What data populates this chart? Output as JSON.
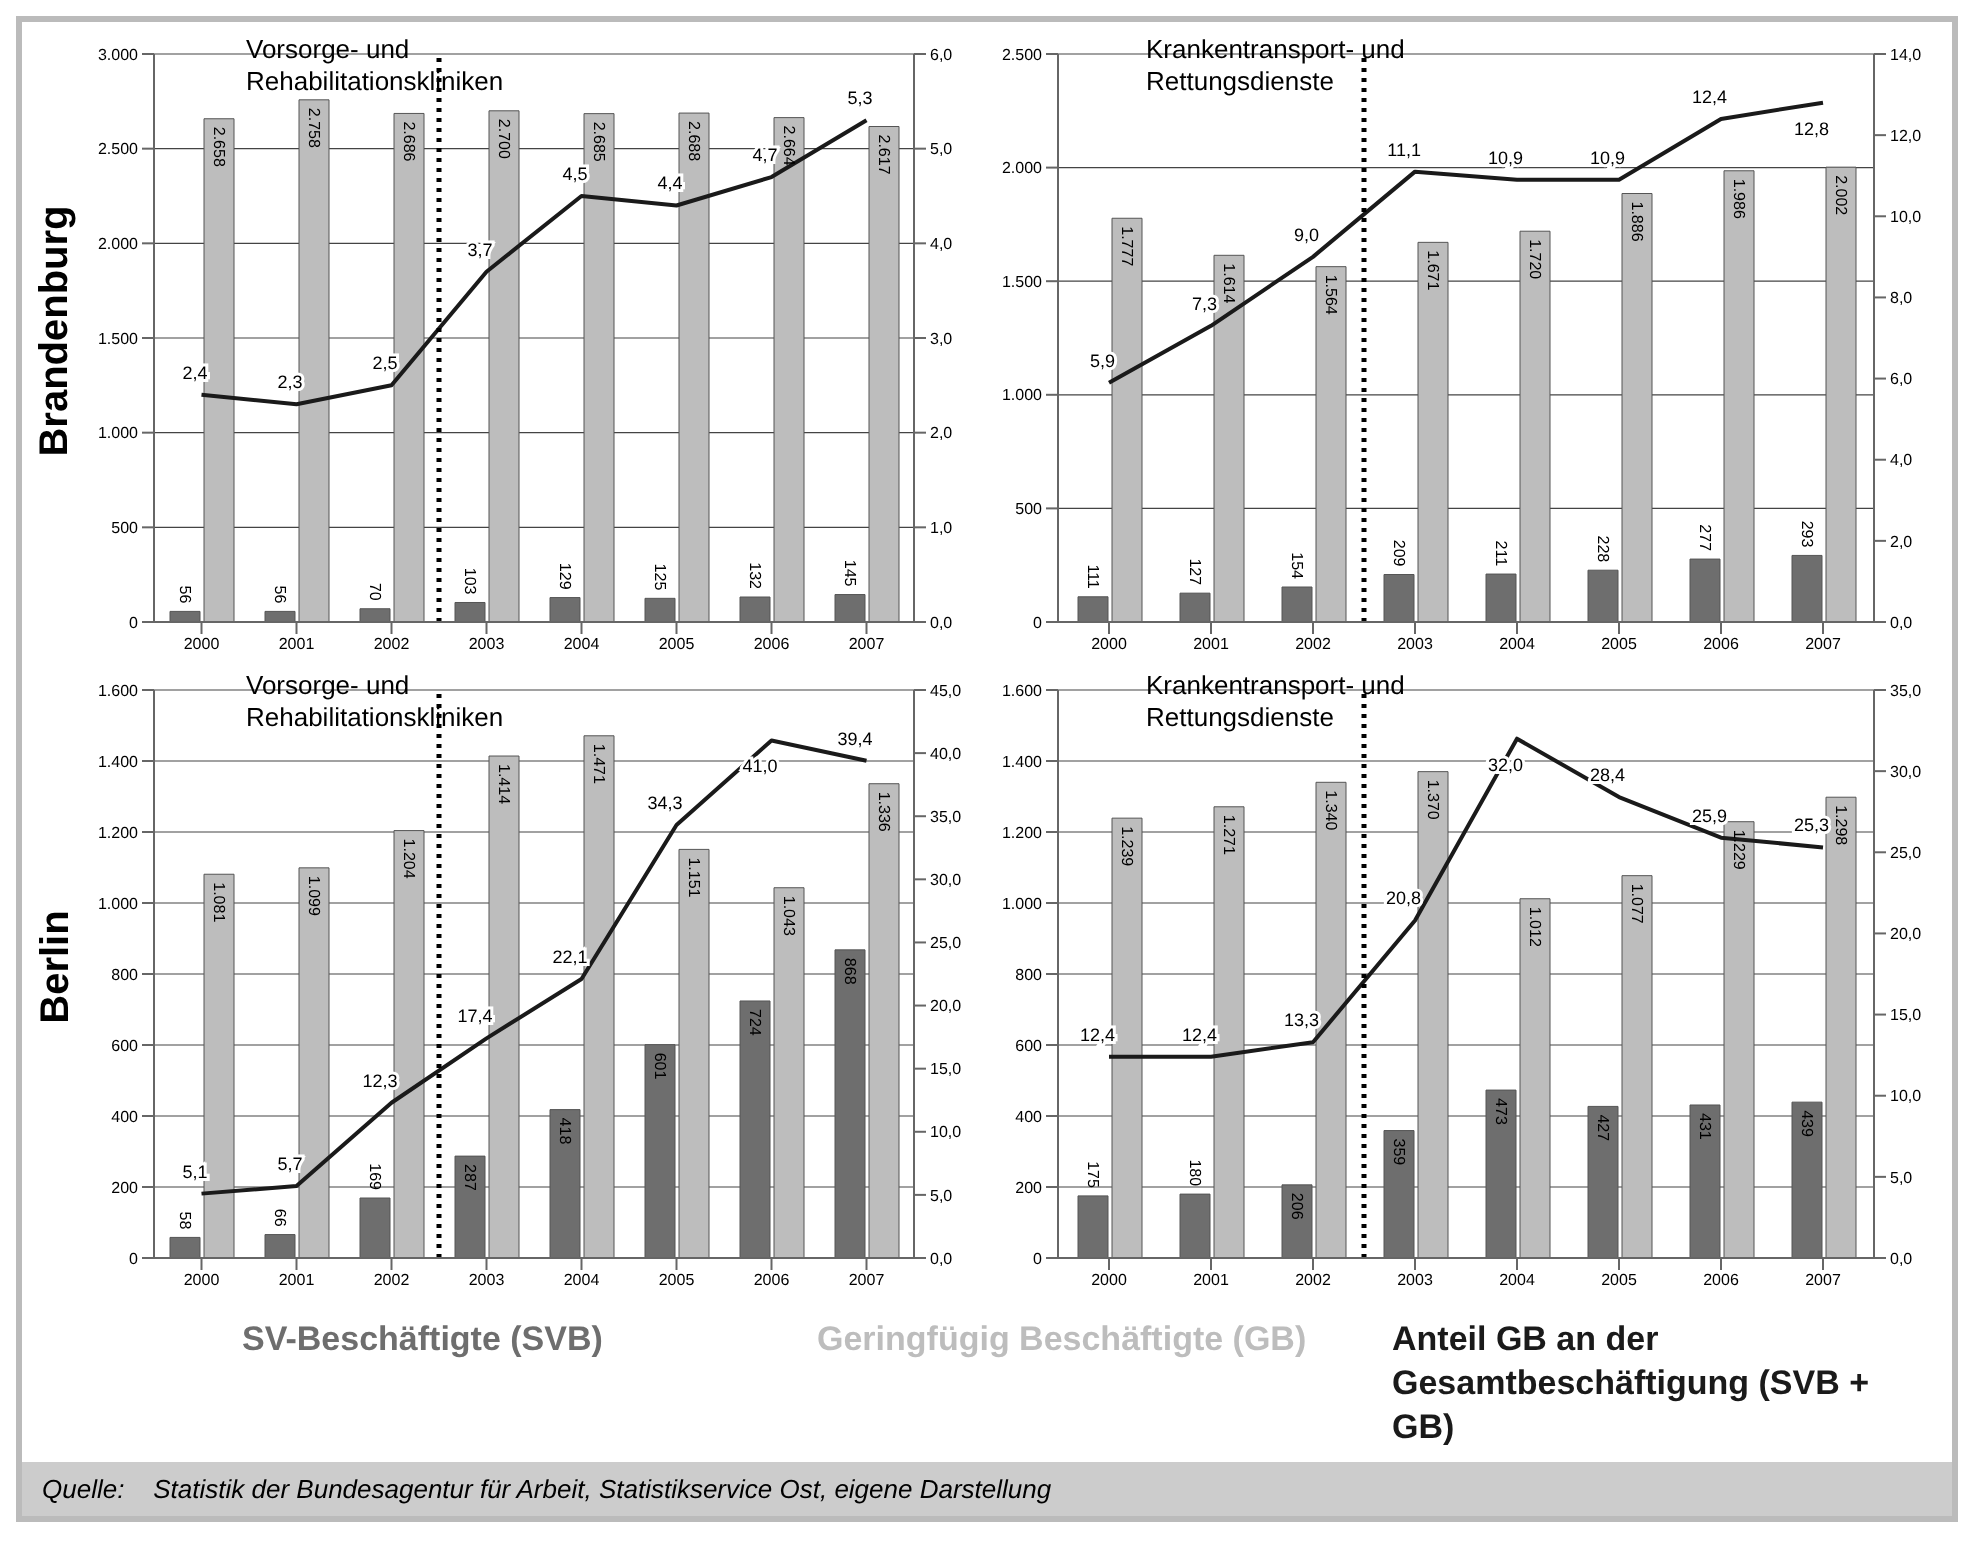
{
  "chart_data": [
    {
      "type": "bar",
      "title": "Vorsorge- und Rehabilitationskliniken",
      "ylabel": "Brandenburg",
      "x": [
        2000,
        2001,
        2002,
        2003,
        2004,
        2005,
        2006,
        2007
      ],
      "xlim": [
        1999.5,
        2007.5
      ],
      "xticks": [
        2000,
        2001,
        2002,
        2003,
        2004,
        2005,
        2006,
        2007
      ],
      "ylim": [
        0,
        3000
      ],
      "yticks": [
        0,
        500,
        {
          "value": 1000,
          "label": "1.000"
        },
        {
          "value": 1500,
          "label": "1.500"
        },
        {
          "value": 2000,
          "label": "2.000"
        },
        {
          "value": 2500,
          "label": "2.500"
        },
        {
          "value": 3000,
          "label": "3.000"
        }
      ],
      "y2lim": [
        0,
        6
      ],
      "y2ticks": [
        {
          "value": 0,
          "label": "0,0"
        },
        {
          "value": 1,
          "label": "1,0"
        },
        {
          "value": 2,
          "label": "2,0"
        },
        {
          "value": 3,
          "label": "3,0"
        },
        {
          "value": 4,
          "label": "4,0"
        },
        {
          "value": 5,
          "label": "5,0"
        },
        {
          "value": 6,
          "label": "6,0"
        }
      ],
      "grid": "y",
      "legend": "bottom",
      "marker": "none",
      "ref_lines": [
        {
          "axis": "x",
          "value": 2002.5,
          "color": "#000000",
          "line_style": "dotted"
        }
      ],
      "series": [
        {
          "name": "SV-Beschäftigte (SVB)",
          "type": "bar",
          "color": "#6e6e6e",
          "values": [
            56,
            56,
            70,
            103,
            129,
            125,
            132,
            145
          ],
          "value_labels": [
            "56",
            "56",
            "70",
            "103",
            "129",
            "125",
            "132",
            "145"
          ]
        },
        {
          "name": "Geringfügig Beschäftigte (GB)",
          "type": "bar",
          "color": "#bdbdbd",
          "values": [
            2658,
            2758,
            2686,
            2700,
            2685,
            2688,
            2664,
            2617
          ],
          "value_labels": [
            "2.658",
            "2.758",
            "2.686",
            "2.700",
            "2.685",
            "2.688",
            "2.664",
            "2.617"
          ]
        },
        {
          "name": "Anteil GB an der Gesamtbeschäftigung (SVB + GB)",
          "type": "line",
          "axis": "y2",
          "color": "#1a1a1a",
          "values": [
            2.4,
            2.3,
            2.5,
            3.7,
            4.5,
            4.4,
            4.7,
            5.3
          ],
          "value_labels": [
            "2,4",
            "2,3",
            "2,5",
            "3,7",
            "4,5",
            "4,4",
            "4,7",
            "5,3"
          ]
        }
      ]
    },
    {
      "type": "bar",
      "title": "Krankentransport- und Rettungsdienste",
      "x": [
        2000,
        2001,
        2002,
        2003,
        2004,
        2005,
        2006,
        2007
      ],
      "xlim": [
        1999.5,
        2007.5
      ],
      "xticks": [
        2000,
        2001,
        2002,
        2003,
        2004,
        2005,
        2006,
        2007
      ],
      "ylim": [
        0,
        2500
      ],
      "yticks": [
        0,
        500,
        {
          "value": 1000,
          "label": "1.000"
        },
        {
          "value": 1500,
          "label": "1.500"
        },
        {
          "value": 2000,
          "label": "2.000"
        },
        {
          "value": 2500,
          "label": "2.500"
        }
      ],
      "y2lim": [
        0,
        14
      ],
      "y2ticks": [
        {
          "value": 0,
          "label": "0,0"
        },
        {
          "value": 2,
          "label": "2,0"
        },
        {
          "value": 4,
          "label": "4,0"
        },
        {
          "value": 6,
          "label": "6,0"
        },
        {
          "value": 8,
          "label": "8,0"
        },
        {
          "value": 10,
          "label": "10,0"
        },
        {
          "value": 12,
          "label": "12,0"
        },
        {
          "value": 14,
          "label": "14,0"
        }
      ],
      "grid": "y",
      "marker": "none",
      "ref_lines": [
        {
          "axis": "x",
          "value": 2002.5,
          "color": "#000000",
          "line_style": "dotted"
        }
      ],
      "series": [
        {
          "type": "bar",
          "color": "#6e6e6e",
          "values": [
            111,
            127,
            154,
            209,
            211,
            228,
            277,
            293
          ],
          "value_labels": [
            "111",
            "127",
            "154",
            "209",
            "211",
            "228",
            "277",
            "293"
          ]
        },
        {
          "type": "bar",
          "color": "#bdbdbd",
          "values": [
            1777,
            1614,
            1564,
            1671,
            1720,
            1886,
            1986,
            2002
          ],
          "value_labels": [
            "1.777",
            "1.614",
            "1.564",
            "1.671",
            "1.720",
            "1.886",
            "1.986",
            "2.002"
          ]
        },
        {
          "type": "line",
          "axis": "y2",
          "color": "#1a1a1a",
          "values": [
            5.9,
            7.3,
            9.0,
            11.1,
            10.9,
            10.9,
            12.4,
            12.8
          ],
          "value_labels": [
            "5,9",
            "7,3",
            "9,0",
            "11,1",
            "10,9",
            "10,9",
            "12,4",
            "12,8"
          ]
        }
      ]
    },
    {
      "type": "bar",
      "title": "Vorsorge- und Rehabilitationskliniken",
      "ylabel": "Berlin",
      "x": [
        2000,
        2001,
        2002,
        2003,
        2004,
        2005,
        2006,
        2007
      ],
      "xlim": [
        1999.5,
        2007.5
      ],
      "xticks": [
        2000,
        2001,
        2002,
        2003,
        2004,
        2005,
        2006,
        2007
      ],
      "ylim": [
        0,
        1600
      ],
      "yticks": [
        0,
        200,
        400,
        600,
        800,
        {
          "value": 1000,
          "label": "1.000"
        },
        {
          "value": 1200,
          "label": "1.200"
        },
        {
          "value": 1400,
          "label": "1.400"
        },
        {
          "value": 1600,
          "label": "1.600"
        }
      ],
      "y2lim": [
        0,
        45
      ],
      "y2ticks": [
        {
          "value": 0,
          "label": "0,0"
        },
        {
          "value": 5,
          "label": "5,0"
        },
        {
          "value": 10,
          "label": "10,0"
        },
        {
          "value": 15,
          "label": "15,0"
        },
        {
          "value": 20,
          "label": "20,0"
        },
        {
          "value": 25,
          "label": "25,0"
        },
        {
          "value": 30,
          "label": "30,0"
        },
        {
          "value": 35,
          "label": "35,0"
        },
        {
          "value": 40,
          "label": "40,0"
        },
        {
          "value": 45,
          "label": "45,0"
        }
      ],
      "grid": "y",
      "marker": "none",
      "ref_lines": [
        {
          "axis": "x",
          "value": 2002.5,
          "color": "#000000",
          "line_style": "dotted"
        }
      ],
      "series": [
        {
          "type": "bar",
          "color": "#6e6e6e",
          "values": [
            58,
            66,
            169,
            287,
            418,
            601,
            724,
            868
          ],
          "value_labels": [
            "58",
            "66",
            "169",
            "287",
            "418",
            "601",
            "724",
            "868"
          ]
        },
        {
          "type": "bar",
          "color": "#bdbdbd",
          "values": [
            1081,
            1099,
            1204,
            1414,
            1471,
            1151,
            1043,
            1336
          ],
          "value_labels": [
            "1.081",
            "1.099",
            "1.204",
            "1.414",
            "1.471",
            "1.151",
            "1.043",
            "1.336"
          ]
        },
        {
          "type": "line",
          "axis": "y2",
          "color": "#1a1a1a",
          "values": [
            5.1,
            5.7,
            12.3,
            17.4,
            22.1,
            34.3,
            41.0,
            39.4
          ],
          "value_labels": [
            "5,1",
            "5,7",
            "12,3",
            "17,4",
            "22,1",
            "34,3",
            "41,0",
            "39,4"
          ]
        }
      ]
    },
    {
      "type": "bar",
      "title": "Krankentransport- und Rettungsdienste",
      "x": [
        2000,
        2001,
        2002,
        2003,
        2004,
        2005,
        2006,
        2007
      ],
      "xlim": [
        1999.5,
        2007.5
      ],
      "xticks": [
        2000,
        2001,
        2002,
        2003,
        2004,
        2005,
        2006,
        2007
      ],
      "ylim": [
        0,
        1600
      ],
      "yticks": [
        0,
        200,
        400,
        600,
        800,
        {
          "value": 1000,
          "label": "1.000"
        },
        {
          "value": 1200,
          "label": "1.200"
        },
        {
          "value": 1400,
          "label": "1.400"
        },
        {
          "value": 1600,
          "label": "1.600"
        }
      ],
      "y2lim": [
        0,
        35
      ],
      "y2ticks": [
        {
          "value": 0,
          "label": "0,0"
        },
        {
          "value": 5,
          "label": "5,0"
        },
        {
          "value": 10,
          "label": "10,0"
        },
        {
          "value": 15,
          "label": "15,0"
        },
        {
          "value": 20,
          "label": "20,0"
        },
        {
          "value": 25,
          "label": "25,0"
        },
        {
          "value": 30,
          "label": "30,0"
        },
        {
          "value": 35,
          "label": "35,0"
        }
      ],
      "grid": "y",
      "marker": "none",
      "ref_lines": [
        {
          "axis": "x",
          "value": 2002.5,
          "color": "#000000",
          "line_style": "dotted"
        }
      ],
      "annotations": [
        "Quelle:    Statistik der Bundesagentur für Arbeit, Statistikservice Ost, eigene Darstellung"
      ],
      "series": [
        {
          "type": "bar",
          "color": "#6e6e6e",
          "values": [
            175,
            180,
            206,
            359,
            473,
            427,
            431,
            439
          ],
          "value_labels": [
            "175",
            "180",
            "206",
            "359",
            "473",
            "427",
            "431",
            "439"
          ]
        },
        {
          "type": "bar",
          "color": "#bdbdbd",
          "values": [
            1239,
            1271,
            1340,
            1370,
            1012,
            1077,
            1229,
            1298
          ],
          "value_labels": [
            "1.239",
            "1.271",
            "1.340",
            "1.370",
            "1.012",
            "1.077",
            "1.229",
            "1.298"
          ]
        },
        {
          "type": "line",
          "axis": "y2",
          "color": "#1a1a1a",
          "values": [
            12.4,
            12.4,
            13.3,
            20.8,
            32.0,
            28.4,
            25.9,
            25.3
          ],
          "value_labels": [
            "12,4",
            "12,4",
            "13,3",
            "20,8",
            "32,0",
            "28,4",
            "25,9",
            "25,3"
          ]
        }
      ]
    }
  ]
}
